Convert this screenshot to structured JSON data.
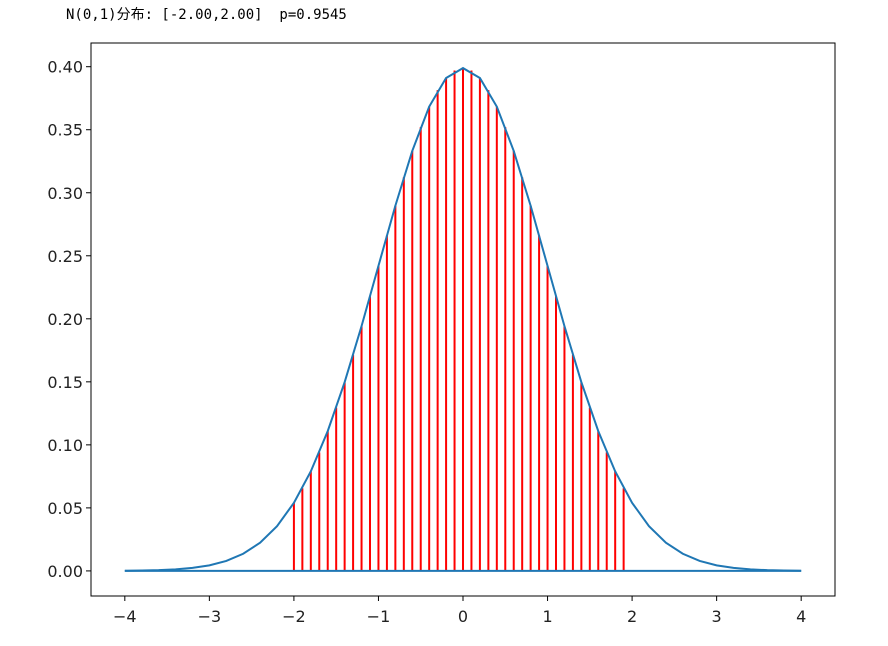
{
  "chart_data": {
    "type": "line",
    "title": "N(0,1)分布: [-2.00,2.00]  p=0.9545",
    "xlim": [
      -4.4,
      4.4
    ],
    "ylim": [
      -0.0199,
      0.4188
    ],
    "xticks": [
      {
        "value": -4,
        "label": "−4"
      },
      {
        "value": -3,
        "label": "−3"
      },
      {
        "value": -2,
        "label": "−2"
      },
      {
        "value": -1,
        "label": "−1"
      },
      0,
      1,
      2,
      3,
      4
    ],
    "yticks": [
      {
        "value": 0,
        "label": "0.00"
      },
      {
        "value": 0.05,
        "label": "0.05"
      },
      {
        "value": 0.1,
        "label": "0.10"
      },
      {
        "value": 0.15,
        "label": "0.15"
      },
      {
        "value": 0.2,
        "label": "0.20"
      },
      {
        "value": 0.25,
        "label": "0.25"
      },
      {
        "value": 0.3,
        "label": "0.30"
      },
      {
        "value": 0.35,
        "label": "0.35"
      },
      {
        "value": 0.4,
        "label": "0.40"
      }
    ],
    "series": [
      {
        "color": "#1f77b4",
        "x": [
          -4.0,
          -3.8,
          -3.6,
          -3.4,
          -3.2,
          -3.0,
          -2.8,
          -2.6,
          -2.4,
          -2.2,
          -2.0,
          -1.8,
          -1.6,
          -1.4,
          -1.2,
          -1.0,
          -0.8,
          -0.6,
          -0.4,
          -0.2,
          0,
          0.2,
          0.4,
          0.6,
          0.8,
          1.0,
          1.2,
          1.4,
          1.6,
          1.8,
          2.0,
          2.2,
          2.4,
          2.6,
          2.8,
          3.0,
          3.2,
          3.4,
          3.6,
          3.8,
          4.0
        ],
        "values": [
          0.0001,
          0.0003,
          0.0006,
          0.0012,
          0.0024,
          0.0044,
          0.0079,
          0.0136,
          0.0224,
          0.0355,
          0.054,
          0.079,
          0.1109,
          0.1497,
          0.1942,
          0.242,
          0.2897,
          0.3332,
          0.3683,
          0.391,
          0.3989,
          0.391,
          0.3683,
          0.3332,
          0.2897,
          0.242,
          0.1942,
          0.1497,
          0.1109,
          0.079,
          0.054,
          0.0355,
          0.0224,
          0.0136,
          0.0079,
          0.0044,
          0.0024,
          0.0012,
          0.0006,
          0.0003,
          0.0001
        ]
      },
      {
        "color": "#1f77b4",
        "x": [
          -4,
          4
        ],
        "values": [
          0,
          0
        ]
      }
    ],
    "vlines": {
      "color": "#ff0000",
      "x": [
        -2.0,
        -1.9,
        -1.8,
        -1.7,
        -1.6,
        -1.5,
        -1.4,
        -1.3,
        -1.2,
        -1.1,
        -1.0,
        -0.9,
        -0.8,
        -0.7,
        -0.6,
        -0.5,
        -0.4,
        -0.3,
        -0.2,
        -0.1,
        0,
        0.1,
        0.2,
        0.3,
        0.4,
        0.5,
        0.6,
        0.7,
        0.8,
        0.9,
        1.0,
        1.1,
        1.2,
        1.3,
        1.4,
        1.5,
        1.6,
        1.7,
        1.8,
        1.9
      ],
      "values": [
        0.054,
        0.0656,
        0.079,
        0.094,
        0.1109,
        0.1295,
        0.1497,
        0.1714,
        0.1942,
        0.2179,
        0.242,
        0.2661,
        0.2897,
        0.3123,
        0.3332,
        0.3521,
        0.3683,
        0.3814,
        0.391,
        0.397,
        0.3989,
        0.397,
        0.391,
        0.3814,
        0.3683,
        0.3521,
        0.3332,
        0.3123,
        0.2897,
        0.2661,
        0.242,
        0.2179,
        0.1942,
        0.1714,
        0.1497,
        0.1295,
        0.1109,
        0.094,
        0.079,
        0.0656
      ]
    }
  }
}
